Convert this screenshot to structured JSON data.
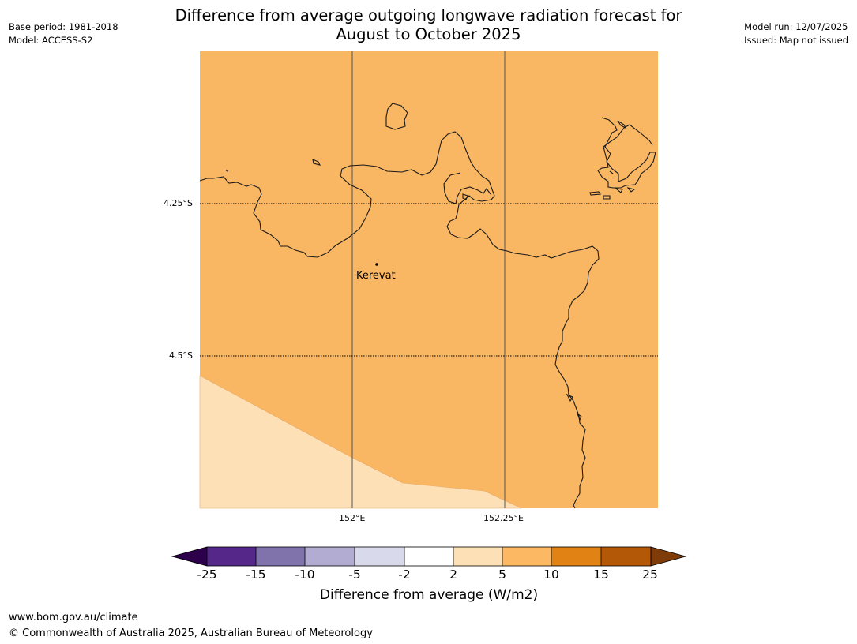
{
  "title": "Difference from average outgoing longwave radiation forecast for\nAugust to October 2025",
  "meta": {
    "base_period": "Base period: 1981-2018",
    "model": "Model: ACCESS-S2",
    "model_run": "Model run: 12/07/2025",
    "issued": "Issued: Map not issued"
  },
  "map": {
    "place_label": "Kerevat",
    "lat_ticks": [
      "4.25°S",
      "4.5°S"
    ],
    "lon_ticks": [
      "152°E",
      "152.25°E"
    ],
    "category_colors": {
      "5_to_10": "#fab763",
      "2_to_5": "#fde0b5"
    },
    "coastline_color": "#000000"
  },
  "colorbar": {
    "label": "Difference from average (W/m2)",
    "ticks": [
      "-25",
      "-15",
      "-10",
      "-5",
      "-2",
      "2",
      "5",
      "10",
      "15",
      "25"
    ],
    "colors": [
      "#2d004b",
      "#542788",
      "#8073ac",
      "#b2abd2",
      "#d8daeb",
      "#ffffff",
      "#fee0b6",
      "#fdb863",
      "#e08214",
      "#b35806",
      "#7f3b08"
    ]
  },
  "footer": {
    "url": "www.bom.gov.au/climate",
    "copyright": "© Commonwealth of Australia 2025, Australian Bureau of Meteorology"
  }
}
